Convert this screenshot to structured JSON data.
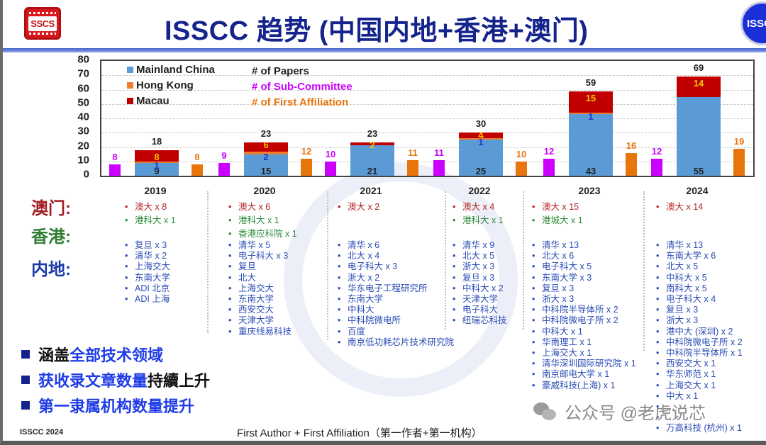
{
  "header": {
    "title": "ISSCC 趋势 (中国内地+香港+澳门)",
    "logo_left": "SSCS",
    "logo_right": "ISSCC"
  },
  "colors": {
    "mainland": "#5b9bd5",
    "hongkong": "#ed7d31",
    "macau": "#c00000",
    "subcommittee": "#cc00ff",
    "first_affiliation": "#e8740c",
    "title_blue": "#14248c",
    "list_blue": "#2a4bb5",
    "list_red": "#b22222",
    "list_green": "#2e8b3a"
  },
  "chart_data": {
    "type": "bar",
    "title": "ISSCC 趋势 (中国内地+香港+澳门)",
    "xlabel": "",
    "ylabel": "",
    "ylim": [
      0,
      80
    ],
    "yticks": [
      0,
      10,
      20,
      30,
      40,
      50,
      60,
      70,
      80
    ],
    "grid": true,
    "legend": {
      "stack_entries": [
        "Mainland China",
        "Hong Kong",
        "Macau"
      ],
      "text_entries": [
        "# of Papers",
        "# of Sub-Committee",
        "# of First Affiliation"
      ],
      "position": "top-left inside plot"
    },
    "categories": [
      "2019",
      "2020",
      "2021",
      "2022",
      "2023",
      "2024"
    ],
    "series": [
      {
        "name": "Mainland China",
        "stack": "papers",
        "values": [
          9,
          15,
          21,
          25,
          43,
          55
        ]
      },
      {
        "name": "Hong Kong",
        "stack": "papers",
        "values": [
          1,
          2,
          0,
          1,
          1,
          0
        ]
      },
      {
        "name": "Macau",
        "stack": "papers",
        "values": [
          8,
          6,
          2,
          4,
          15,
          14
        ]
      },
      {
        "name": "# of Papers (total)",
        "values": [
          18,
          23,
          23,
          30,
          59,
          69
        ]
      },
      {
        "name": "# of Sub-Committee",
        "values": [
          8,
          9,
          10,
          11,
          12,
          12
        ]
      },
      {
        "name": "# of First Affiliation",
        "values": [
          8,
          12,
          11,
          10,
          16,
          19
        ]
      }
    ]
  },
  "chart_labels": {
    "yticks": [
      "0",
      "10",
      "20",
      "30",
      "40",
      "50",
      "60",
      "70",
      "80"
    ],
    "legend_mainland": "Mainland China",
    "legend_hongkong": "Hong Kong",
    "legend_macau": "Macau",
    "legend_papers": "# of Papers",
    "legend_subcommittee": "# of Sub-Committee",
    "legend_affiliation": "# of First Affiliation",
    "years": [
      "2019",
      "2020",
      "2021",
      "2022",
      "2023",
      "2024"
    ],
    "totals": [
      "18",
      "23",
      "23",
      "30",
      "59",
      "69"
    ],
    "mainland": [
      "9",
      "15",
      "21",
      "25",
      "43",
      "55"
    ],
    "hongkong": [
      "1",
      "2",
      "",
      "1",
      "1",
      ""
    ],
    "macau": [
      "8",
      "6",
      "2",
      "4",
      "15",
      "14"
    ],
    "subcommittee": [
      "8",
      "9",
      "10",
      "11",
      "12",
      "12"
    ],
    "affiliation": [
      "8",
      "12",
      "11",
      "10",
      "16",
      "19"
    ]
  },
  "side_labels": {
    "macau": "澳门:",
    "hongkong": "香港:",
    "mainland": "内地:"
  },
  "affiliations": {
    "2019": {
      "macau": [
        "澳大 x 8"
      ],
      "hongkong": [
        "港科大 x 1"
      ],
      "mainland": [
        "复旦 x 3",
        "清华 x 2",
        "上海交大",
        "东南大学",
        "ADI 北京",
        "ADI 上海"
      ]
    },
    "2020": {
      "macau": [
        "澳大 x 6"
      ],
      "hongkong": [
        "港科大 x 1",
        "香港应科院 x 1"
      ],
      "mainland": [
        "清华 x 5",
        "电子科大 x 3",
        "复旦",
        "北大",
        "上海交大",
        "东南大学",
        "西安交大",
        "天津大学",
        "重庆线易科技"
      ]
    },
    "2021": {
      "macau": [
        "澳大 x 2"
      ],
      "hongkong": [],
      "mainland": [
        "清华 x 6",
        "北大 x 4",
        "电子科大 x 3",
        "浙大 x 2",
        "华东电子工程研究所",
        "东南大学",
        "中科大",
        "中科院微电所",
        "百度",
        "南京低功耗芯片技术研究院"
      ]
    },
    "2022": {
      "macau": [
        "澳大 x 4"
      ],
      "hongkong": [
        "港科大 x 1"
      ],
      "mainland": [
        "清华 x 9",
        "北大 x 5",
        "浙大 x 3",
        "复旦 x 3",
        "中科大 x 2",
        "天津大学",
        "电子科大",
        "纽瑞芯科技"
      ]
    },
    "2023": {
      "macau": [
        "澳大 x 15"
      ],
      "hongkong": [
        "港城大 x 1"
      ],
      "mainland": [
        "清华 x 13",
        "北大 x 6",
        "电子科大 x 5",
        "东南大学 x 3",
        "复旦 x 3",
        "浙大 x 3",
        "中科院半导体所 x 2",
        "中科院微电子所 x 2",
        "中科大 x 1",
        "华南理工 x 1",
        "上海交大 x 1",
        "清华深圳国际研究院 x 1",
        "南京邮电大学 x 1",
        "豪威科技(上海) x 1"
      ]
    },
    "2024": {
      "macau": [
        "澳大 x 14"
      ],
      "hongkong": [],
      "mainland": [
        "清华 x 13",
        "东南大学 x 6",
        "北大 x 5",
        "中科大 x 5",
        "南科大 x 5",
        "电子科大 x 4",
        "复旦 x 3",
        "浙大 x 3",
        "港中大 (深圳) x 2",
        "中科院微电子所 x 2",
        "中科院半导体所 x 1",
        "西安交大 x 1",
        "华东师范 x 1",
        "上海交大 x 1",
        "中大 x 1",
        "…",
        "…",
        "万高科技 (杭州) x 1"
      ]
    }
  },
  "bullets": [
    {
      "black": "涵盖",
      "blue": "全部技术领域",
      "black2": ""
    },
    {
      "black": "",
      "blue": "获收录文章数量",
      "black2": "持續上升"
    },
    {
      "black": "",
      "blue": "第一隶属机构数量提升",
      "black2": ""
    }
  ],
  "footer": {
    "left": "ISSCC 2024",
    "center": "First Author + First Affiliation（第一作者+第一机构）",
    "watermark": "公众号 @老虎说芯"
  }
}
